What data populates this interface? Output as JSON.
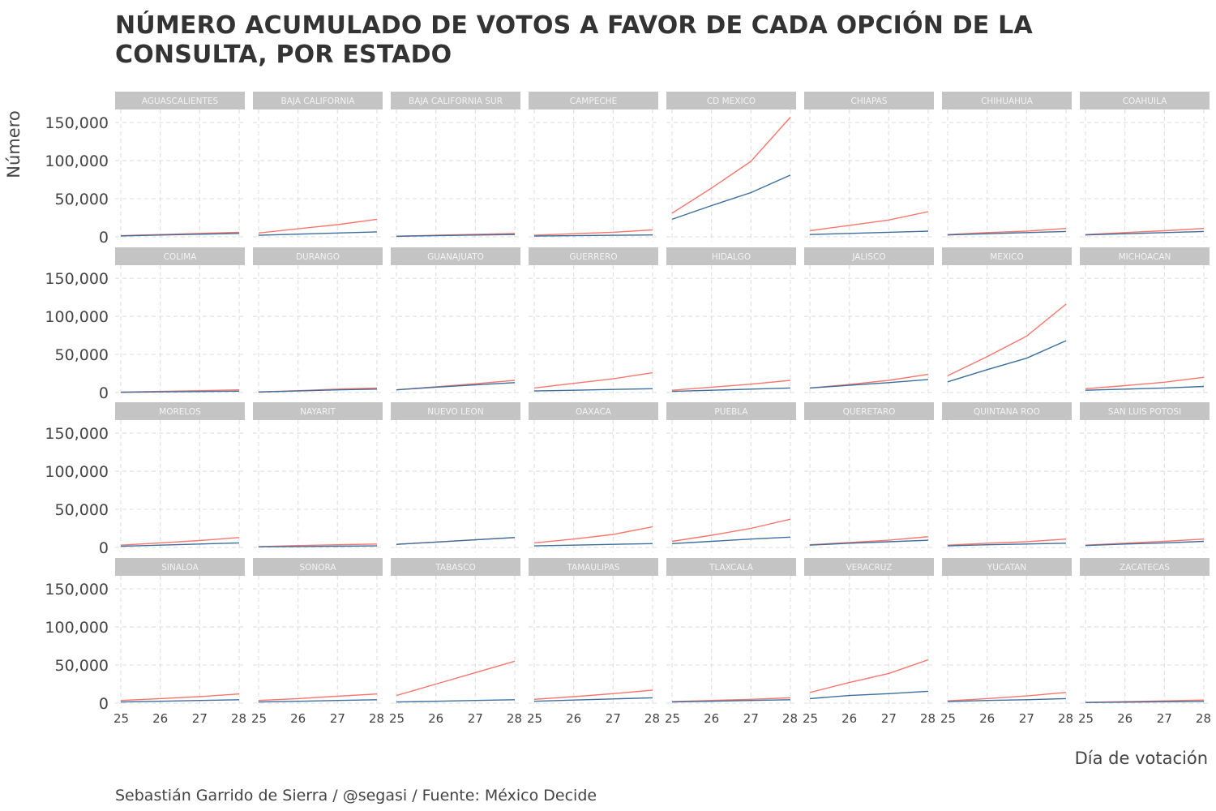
{
  "chart_data": {
    "type": "line",
    "title": "NÚMERO ACUMULADO DE VOTOS A FAVOR DE CADA OPCIÓN DE LA CONSULTA, POR ESTADO",
    "xlabel": "Día de votación",
    "ylabel": "Número",
    "caption": "Sebastián Garrido de Sierra / @segasi / Fuente: México Decide",
    "x": [
      25,
      26,
      27,
      28
    ],
    "x_tick_labels": [
      "25",
      "26",
      "27",
      "28"
    ],
    "ylim": [
      0,
      165000
    ],
    "y_ticks": [
      0,
      50000,
      100000,
      150000
    ],
    "y_tick_labels": [
      "0",
      "50,000",
      "100,000",
      "150,000"
    ],
    "grid": true,
    "facet_layout": "4 rows x 8 columns",
    "series_colors": {
      "red": "#F8766D",
      "blue": "#3B6E9C"
    },
    "panels": [
      {
        "state": "AGUASCALIENTES",
        "red": [
          1500,
          3000,
          4500,
          6000
        ],
        "blue": [
          1200,
          2300,
          3400,
          4500
        ]
      },
      {
        "state": "BAJA CALIFORNIA",
        "red": [
          5000,
          10500,
          16000,
          23000
        ],
        "blue": [
          2000,
          3500,
          5000,
          6500
        ]
      },
      {
        "state": "BAJA CALIFORNIA SUR",
        "red": [
          800,
          2000,
          3300,
          4500
        ],
        "blue": [
          600,
          1500,
          2300,
          3000
        ]
      },
      {
        "state": "CAMPECHE",
        "red": [
          2000,
          4000,
          6000,
          9000
        ],
        "blue": [
          1000,
          1500,
          2000,
          2500
        ]
      },
      {
        "state": "CD MEXICO",
        "red": [
          31000,
          64000,
          99000,
          157000
        ],
        "blue": [
          23000,
          41000,
          58000,
          81000
        ]
      },
      {
        "state": "CHIAPAS",
        "red": [
          8000,
          15000,
          22000,
          33000
        ],
        "blue": [
          3000,
          4500,
          6000,
          7500
        ]
      },
      {
        "state": "CHIHUAHUA",
        "red": [
          3000,
          5500,
          7500,
          11000
        ],
        "blue": [
          2500,
          4000,
          5500,
          7000
        ]
      },
      {
        "state": "COAHUILA",
        "red": [
          3000,
          5500,
          8000,
          11000
        ],
        "blue": [
          2500,
          4000,
          5500,
          7000
        ]
      },
      {
        "state": "COLIMA",
        "red": [
          500,
          1500,
          2500,
          3500
        ],
        "blue": [
          300,
          800,
          1300,
          1800
        ]
      },
      {
        "state": "DURANGO",
        "red": [
          800,
          2500,
          4500,
          6000
        ],
        "blue": [
          600,
          2000,
          3500,
          4500
        ]
      },
      {
        "state": "GUANAJUATO",
        "red": [
          3500,
          7500,
          11500,
          16000
        ],
        "blue": [
          3500,
          7000,
          10000,
          13000
        ]
      },
      {
        "state": "GUERRERO",
        "red": [
          6000,
          12000,
          18000,
          26000
        ],
        "blue": [
          2000,
          3000,
          4000,
          5000
        ]
      },
      {
        "state": "HIDALGO",
        "red": [
          3000,
          7000,
          11000,
          16000
        ],
        "blue": [
          1500,
          3000,
          4500,
          6000
        ]
      },
      {
        "state": "JALISCO",
        "red": [
          6000,
          10500,
          16000,
          24000
        ],
        "blue": [
          6000,
          9500,
          13000,
          17000
        ]
      },
      {
        "state": "MEXICO",
        "red": [
          22000,
          47000,
          74000,
          116000
        ],
        "blue": [
          14000,
          30000,
          45000,
          68000
        ]
      },
      {
        "state": "MICHOACAN",
        "red": [
          5000,
          9000,
          13500,
          20000
        ],
        "blue": [
          3000,
          4500,
          6000,
          8000
        ]
      },
      {
        "state": "MORELOS",
        "red": [
          3000,
          6000,
          9000,
          13000
        ],
        "blue": [
          1500,
          3000,
          4500,
          6000
        ]
      },
      {
        "state": "NAYARIT",
        "red": [
          1000,
          2500,
          3500,
          4500
        ],
        "blue": [
          800,
          1200,
          1600,
          2000
        ]
      },
      {
        "state": "NUEVO LEON",
        "red": [
          4000,
          7000,
          10000,
          13000
        ],
        "blue": [
          4000,
          7000,
          10000,
          13000
        ]
      },
      {
        "state": "OAXACA",
        "red": [
          6000,
          11000,
          17000,
          27000
        ],
        "blue": [
          2000,
          3000,
          4000,
          5000
        ]
      },
      {
        "state": "PUEBLA",
        "red": [
          8000,
          16000,
          25000,
          37000
        ],
        "blue": [
          5000,
          8000,
          11000,
          13500
        ]
      },
      {
        "state": "QUERETARO",
        "red": [
          3500,
          6500,
          9500,
          14000
        ],
        "blue": [
          3000,
          5500,
          7500,
          9500
        ]
      },
      {
        "state": "QUINTANA ROO",
        "red": [
          3000,
          5500,
          7500,
          11000
        ],
        "blue": [
          2000,
          3500,
          4500,
          5500
        ]
      },
      {
        "state": "SAN LUIS POTOSI",
        "red": [
          3000,
          5500,
          8000,
          11000
        ],
        "blue": [
          2500,
          4500,
          6000,
          8000
        ]
      },
      {
        "state": "SINALOA",
        "red": [
          3500,
          6000,
          8500,
          12000
        ],
        "blue": [
          1500,
          2500,
          3500,
          4500
        ]
      },
      {
        "state": "SONORA",
        "red": [
          3500,
          6000,
          9000,
          12000
        ],
        "blue": [
          1500,
          2500,
          3500,
          4500
        ]
      },
      {
        "state": "TABASCO",
        "red": [
          10000,
          25000,
          40000,
          55000
        ],
        "blue": [
          1500,
          2500,
          3500,
          4500
        ]
      },
      {
        "state": "TAMAULIPAS",
        "red": [
          5000,
          8500,
          12500,
          17000
        ],
        "blue": [
          2500,
          4000,
          5500,
          7000
        ]
      },
      {
        "state": "TLAXCALA",
        "red": [
          2000,
          3500,
          5000,
          7000
        ],
        "blue": [
          1500,
          2500,
          3500,
          4500
        ]
      },
      {
        "state": "VERACRUZ",
        "red": [
          14000,
          27000,
          39000,
          57000
        ],
        "blue": [
          6000,
          10000,
          12500,
          15500
        ]
      },
      {
        "state": "YUCATAN",
        "red": [
          3000,
          6000,
          9500,
          14000
        ],
        "blue": [
          2000,
          3500,
          4500,
          6000
        ]
      },
      {
        "state": "ZACATECAS",
        "red": [
          1000,
          2000,
          3000,
          4000
        ],
        "blue": [
          800,
          1300,
          1800,
          2300
        ]
      }
    ]
  }
}
